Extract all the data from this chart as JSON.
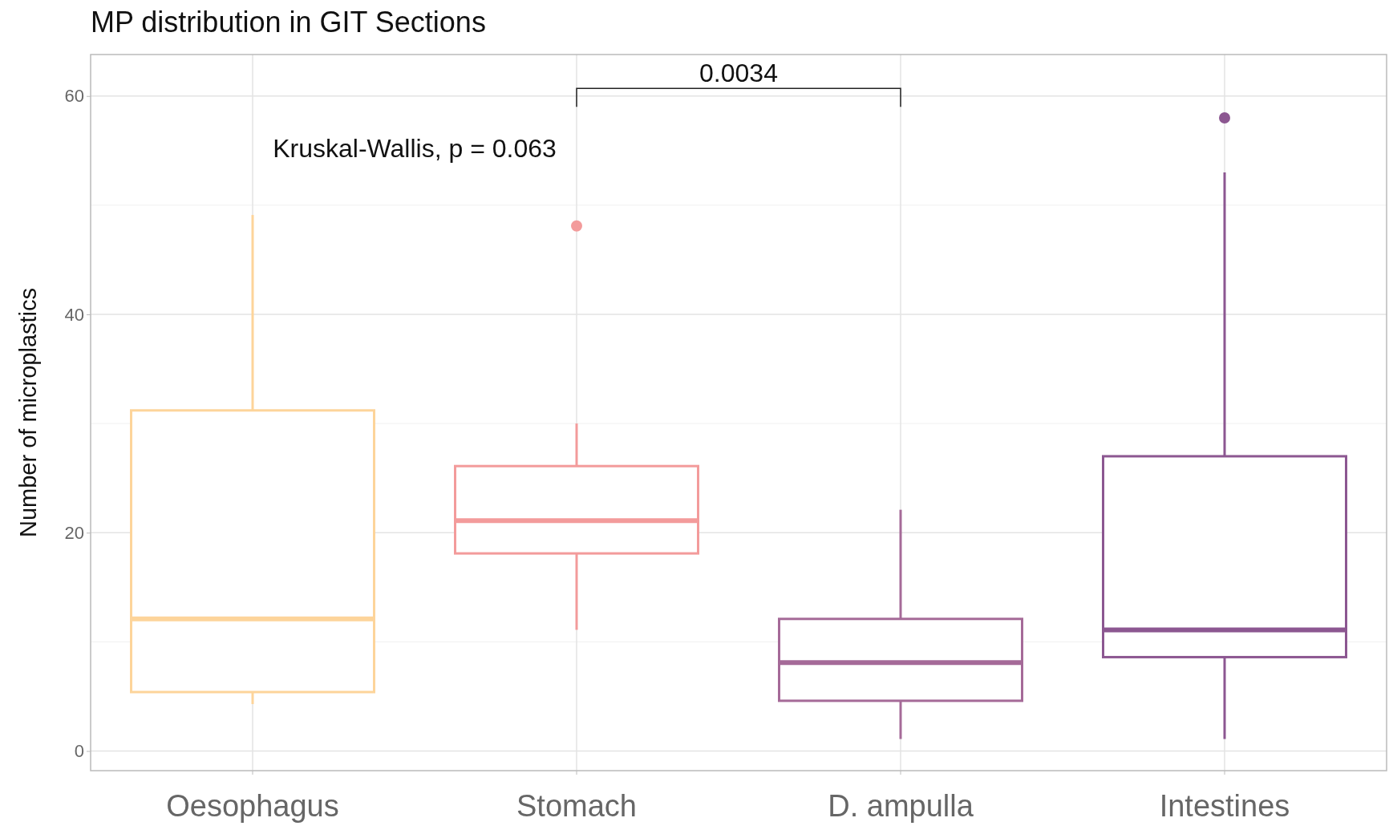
{
  "chart_data": {
    "type": "box",
    "title": "MP distribution in GIT Sections",
    "ylabel": "Number of microplastics",
    "categories": [
      "Oesophagus",
      "Stomach",
      "D. ampulla",
      "Intestines"
    ],
    "colors": [
      "#fdd49a",
      "#f39b9b",
      "#a56a98",
      "#8c5791"
    ],
    "boxes": [
      {
        "low": 4.3,
        "q1": 5.4,
        "median": 12.1,
        "q3": 31.2,
        "high": 49.1
      },
      {
        "low": 11.1,
        "q1": 18.1,
        "median": 21.1,
        "q3": 26.1,
        "high": 30.0,
        "outliers": [
          48.1
        ]
      },
      {
        "low": 1.1,
        "q1": 4.6,
        "median": 8.1,
        "q3": 12.1,
        "high": 22.1
      },
      {
        "low": 1.1,
        "q1": 8.6,
        "median": 11.1,
        "q3": 27.0,
        "high": 53.0,
        "outliers": [
          58.0
        ]
      }
    ],
    "ylim": [
      -1.8,
      63.8
    ],
    "yticks": [
      0,
      20,
      40,
      60
    ],
    "grid": true,
    "annotations": [
      "Kruskal-Wallis, p = 0.063",
      "0.0034"
    ]
  }
}
